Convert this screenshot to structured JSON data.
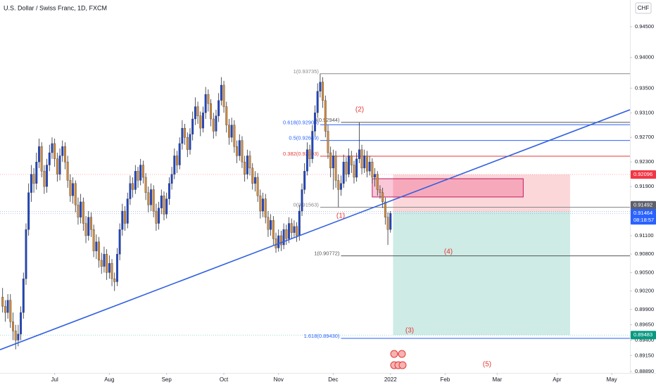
{
  "chart_data": {
    "type": "candlestick",
    "title": "U.S. Dollar / Swiss Franc, 1D, FXCM",
    "currency": "CHF",
    "up_color": "#1f45c4",
    "down_color": "#d08a3c",
    "x": [
      0,
      1,
      2,
      3,
      4,
      5,
      6,
      7,
      8,
      9,
      10,
      11,
      12,
      13,
      14,
      15,
      16,
      17,
      18,
      19,
      20,
      21,
      22,
      23,
      24,
      25,
      26,
      27,
      28,
      29,
      30,
      31,
      32,
      33,
      34,
      35,
      36,
      37,
      38,
      39,
      40,
      41,
      42,
      43,
      44,
      45,
      46,
      47,
      48,
      49,
      50,
      51,
      52,
      53,
      54,
      55,
      56,
      57,
      58,
      59,
      60,
      61,
      62,
      63,
      64,
      65,
      66,
      67,
      68,
      69,
      70,
      71,
      72,
      73,
      74,
      75,
      76,
      77,
      78,
      79,
      80,
      81,
      82,
      83,
      84,
      85,
      86,
      87,
      88,
      89,
      90,
      91,
      92,
      93,
      94,
      95,
      96,
      97,
      98,
      99,
      100,
      101,
      102,
      103,
      104,
      105,
      106,
      107,
      108,
      109,
      110,
      111,
      112,
      113,
      114,
      115,
      116,
      117,
      118,
      119,
      120,
      121,
      122,
      123,
      124,
      125,
      126,
      127,
      128,
      129,
      130,
      131,
      132,
      133,
      134,
      135,
      136,
      137,
      138,
      139,
      140,
      141,
      142,
      143,
      144,
      145,
      146,
      147,
      148,
      149
    ],
    "open": [
      0.901,
      0.8995,
      0.8985,
      0.9005,
      0.897,
      0.8955,
      0.894,
      0.895,
      0.8985,
      0.904,
      0.912,
      0.918,
      0.921,
      0.9195,
      0.923,
      0.9255,
      0.9215,
      0.919,
      0.9225,
      0.9245,
      0.926,
      0.9235,
      0.921,
      0.924,
      0.9255,
      0.923,
      0.92,
      0.9175,
      0.9195,
      0.916,
      0.914,
      0.9165,
      0.913,
      0.911,
      0.914,
      0.912,
      0.9085,
      0.91,
      0.907,
      0.906,
      0.908,
      0.905,
      0.9065,
      0.904,
      0.9035,
      0.908,
      0.912,
      0.915,
      0.913,
      0.917,
      0.9195,
      0.9185,
      0.9215,
      0.92,
      0.9225,
      0.9205,
      0.918,
      0.916,
      0.9185,
      0.915,
      0.913,
      0.9155,
      0.9175,
      0.9145,
      0.917,
      0.9195,
      0.921,
      0.924,
      0.9225,
      0.926,
      0.9285,
      0.927,
      0.925,
      0.9275,
      0.93,
      0.932,
      0.9305,
      0.9285,
      0.931,
      0.934,
      0.9325,
      0.93,
      0.928,
      0.9305,
      0.933,
      0.9355,
      0.932,
      0.929,
      0.927,
      0.929,
      0.9255,
      0.924,
      0.9265,
      0.923,
      0.921,
      0.924,
      0.922,
      0.9195,
      0.9205,
      0.9175,
      0.915,
      0.917,
      0.914,
      0.912,
      0.9135,
      0.9105,
      0.909,
      0.911,
      0.9095,
      0.912,
      0.9105,
      0.913,
      0.9115,
      0.9125,
      0.911,
      0.915,
      0.9185,
      0.9215,
      0.925,
      0.9235,
      0.928,
      0.931,
      0.9345,
      0.936,
      0.933,
      0.928,
      0.9245,
      0.922,
      0.924,
      0.92,
      0.9185,
      0.9195,
      0.923,
      0.921,
      0.924,
      0.9225,
      0.9205,
      0.9235,
      0.925,
      0.922,
      0.924,
      0.9215,
      0.923,
      0.9205,
      0.921,
      0.9185,
      0.918,
      0.9165,
      0.914,
      0.912
    ],
    "high": [
      0.9025,
      0.9005,
      0.9015,
      0.9015,
      0.8985,
      0.8965,
      0.8965,
      0.8995,
      0.905,
      0.913,
      0.9195,
      0.9225,
      0.922,
      0.9245,
      0.9268,
      0.9262,
      0.9225,
      0.9235,
      0.9258,
      0.927,
      0.9268,
      0.9245,
      0.9252,
      0.9265,
      0.9262,
      0.924,
      0.921,
      0.9205,
      0.92,
      0.9172,
      0.9178,
      0.9172,
      0.9142,
      0.915,
      0.9148,
      0.9128,
      0.9112,
      0.9108,
      0.9082,
      0.9092,
      0.9088,
      0.9078,
      0.9072,
      0.905,
      0.909,
      0.913,
      0.9162,
      0.9158,
      0.918,
      0.9208,
      0.9205,
      0.9225,
      0.9222,
      0.9235,
      0.9232,
      0.9212,
      0.919,
      0.9195,
      0.9192,
      0.9162,
      0.9165,
      0.9185,
      0.9182,
      0.918,
      0.9205,
      0.9222,
      0.9252,
      0.9248,
      0.927,
      0.9298,
      0.9292,
      0.9278,
      0.9285,
      0.9312,
      0.9335,
      0.9328,
      0.9312,
      0.932,
      0.9352,
      0.9348,
      0.9332,
      0.931,
      0.9315,
      0.9342,
      0.9368,
      0.9362,
      0.9328,
      0.93,
      0.9302,
      0.9298,
      0.9265,
      0.9275,
      0.9272,
      0.924,
      0.925,
      0.9248,
      0.9228,
      0.9215,
      0.9212,
      0.9185,
      0.918,
      0.9178,
      0.915,
      0.9145,
      0.9142,
      0.9115,
      0.912,
      0.9118,
      0.913,
      0.9128,
      0.914,
      0.9138,
      0.9135,
      0.9132,
      0.916,
      0.9195,
      0.9228,
      0.9262,
      0.9258,
      0.929,
      0.9322,
      0.9358,
      0.93735,
      0.9368,
      0.9338,
      0.929,
      0.9255,
      0.925,
      0.9248,
      0.921,
      0.9208,
      0.9242,
      0.9238,
      0.9252,
      0.9248,
      0.9232,
      0.9245,
      0.92944,
      0.9258,
      0.925,
      0.9248,
      0.924,
      0.9236,
      0.922,
      0.9215,
      0.9192,
      0.9188,
      0.9172,
      0.9148,
      0.915
    ],
    "low": [
      0.8985,
      0.897,
      0.8975,
      0.896,
      0.894,
      0.8925,
      0.893,
      0.894,
      0.8975,
      0.903,
      0.911,
      0.9165,
      0.918,
      0.9185,
      0.922,
      0.9205,
      0.9178,
      0.918,
      0.9215,
      0.9235,
      0.9222,
      0.9198,
      0.92,
      0.923,
      0.9218,
      0.9188,
      0.9165,
      0.9162,
      0.9148,
      0.9128,
      0.913,
      0.9118,
      0.9098,
      0.9102,
      0.9108,
      0.9075,
      0.9072,
      0.9058,
      0.9048,
      0.905,
      0.9038,
      0.904,
      0.9028,
      0.902,
      0.9028,
      0.907,
      0.911,
      0.9118,
      0.9122,
      0.916,
      0.9172,
      0.9178,
      0.9188,
      0.9192,
      0.9195,
      0.9168,
      0.9148,
      0.915,
      0.914,
      0.9118,
      0.912,
      0.9145,
      0.9135,
      0.9138,
      0.916,
      0.9185,
      0.9202,
      0.9212,
      0.9218,
      0.925,
      0.9258,
      0.9238,
      0.9242,
      0.9265,
      0.929,
      0.9292,
      0.9272,
      0.9278,
      0.93,
      0.9312,
      0.9288,
      0.9268,
      0.9272,
      0.9295,
      0.9322,
      0.931,
      0.9278,
      0.9258,
      0.9262,
      0.9245,
      0.9228,
      0.9232,
      0.922,
      0.9198,
      0.9202,
      0.9208,
      0.9185,
      0.9182,
      0.9165,
      0.9138,
      0.914,
      0.913,
      0.9108,
      0.911,
      0.9095,
      0.9082,
      0.9084,
      0.9085,
      0.9088,
      0.9095,
      0.9098,
      0.9105,
      0.9108,
      0.91,
      0.9102,
      0.9142,
      0.9178,
      0.9208,
      0.9222,
      0.9228,
      0.9272,
      0.9302,
      0.9335,
      0.9318,
      0.927,
      0.9235,
      0.9205,
      0.9185,
      0.9188,
      0.91563,
      0.9175,
      0.9188,
      0.9198,
      0.9205,
      0.9212,
      0.9195,
      0.9198,
      0.9228,
      0.921,
      0.9212,
      0.9205,
      0.9208,
      0.9195,
      0.919,
      0.9175,
      0.917,
      0.9155,
      0.9128,
      0.9095,
      0.9115
    ],
    "close": [
      0.8995,
      0.8985,
      0.9005,
      0.897,
      0.8955,
      0.894,
      0.895,
      0.8985,
      0.904,
      0.912,
      0.918,
      0.921,
      0.9195,
      0.923,
      0.9255,
      0.9215,
      0.919,
      0.9225,
      0.9245,
      0.926,
      0.9235,
      0.921,
      0.924,
      0.9255,
      0.923,
      0.92,
      0.9175,
      0.9195,
      0.916,
      0.914,
      0.9165,
      0.913,
      0.911,
      0.914,
      0.912,
      0.9085,
      0.91,
      0.907,
      0.906,
      0.908,
      0.905,
      0.9065,
      0.904,
      0.9035,
      0.908,
      0.912,
      0.915,
      0.913,
      0.917,
      0.9195,
      0.9185,
      0.9215,
      0.92,
      0.9225,
      0.9205,
      0.918,
      0.916,
      0.9185,
      0.915,
      0.913,
      0.9155,
      0.9175,
      0.9145,
      0.917,
      0.9195,
      0.921,
      0.924,
      0.9225,
      0.926,
      0.9285,
      0.927,
      0.925,
      0.9275,
      0.93,
      0.932,
      0.9305,
      0.9285,
      0.931,
      0.934,
      0.9325,
      0.93,
      0.928,
      0.9305,
      0.933,
      0.9355,
      0.932,
      0.929,
      0.927,
      0.929,
      0.9255,
      0.924,
      0.9265,
      0.923,
      0.921,
      0.924,
      0.922,
      0.9195,
      0.9205,
      0.9175,
      0.915,
      0.917,
      0.914,
      0.912,
      0.9135,
      0.9105,
      0.909,
      0.911,
      0.9095,
      0.912,
      0.9105,
      0.913,
      0.9115,
      0.9125,
      0.911,
      0.915,
      0.9185,
      0.9215,
      0.925,
      0.9235,
      0.928,
      0.931,
      0.9345,
      0.936,
      0.933,
      0.928,
      0.9245,
      0.922,
      0.924,
      0.92,
      0.9185,
      0.9195,
      0.923,
      0.921,
      0.924,
      0.9225,
      0.9205,
      0.9235,
      0.925,
      0.922,
      0.924,
      0.9215,
      0.923,
      0.9205,
      0.921,
      0.9185,
      0.918,
      0.9165,
      0.914,
      0.912,
      0.91464
    ],
    "xlim": [
      -1,
      241
    ],
    "xticks": [
      {
        "value": 20,
        "label": "Jul"
      },
      {
        "value": 41,
        "label": "Aug"
      },
      {
        "value": 63,
        "label": "Sep"
      },
      {
        "value": 85,
        "label": "Oct"
      },
      {
        "value": 106,
        "label": "Nov"
      },
      {
        "value": 127,
        "label": "Dec"
      },
      {
        "value": 149,
        "label": "2022"
      },
      {
        "value": 170,
        "label": "Feb"
      },
      {
        "value": 190,
        "label": "Mar"
      },
      {
        "value": 213,
        "label": "Apr"
      },
      {
        "value": 234,
        "label": "May"
      }
    ],
    "ylim": [
      0.88867,
      0.94935
    ],
    "yticks": [
      {
        "value": 0.945,
        "label": "0.94500"
      },
      {
        "value": 0.94,
        "label": "0.94000"
      },
      {
        "value": 0.935,
        "label": "0.93500"
      },
      {
        "value": 0.931,
        "label": "0.93100"
      },
      {
        "value": 0.927,
        "label": "0.92700"
      },
      {
        "value": 0.923,
        "label": "0.92300"
      },
      {
        "value": 0.919,
        "label": "0.91900"
      },
      {
        "value": 0.911,
        "label": "0.91100"
      },
      {
        "value": 0.908,
        "label": "0.90800"
      },
      {
        "value": 0.905,
        "label": "0.90500"
      },
      {
        "value": 0.902,
        "label": "0.90200"
      },
      {
        "value": 0.899,
        "label": "0.89900"
      },
      {
        "value": 0.8965,
        "label": "0.89650"
      },
      {
        "value": 0.894,
        "label": "0.89400"
      },
      {
        "value": 0.8915,
        "label": "0.89150"
      },
      {
        "value": 0.8889,
        "label": "0.88890"
      }
    ],
    "grid": false,
    "trendline": {
      "color": "#2f5fe0",
      "x": [
        -1,
        241
      ],
      "y": [
        0.89245,
        0.93149
      ]
    },
    "fib_levels": [
      {
        "value": 0.93735,
        "label": "1(0.93735)",
        "color": "#888888",
        "x0": 122
      },
      {
        "value": 0.92905,
        "label": "0.618(0.92905)",
        "color": "#2962ff",
        "x0": 122
      },
      {
        "value": 0.92649,
        "label": "0.5(0.92649)",
        "color": "#2962ff",
        "x0": 122
      },
      {
        "value": 0.92393,
        "label": "0.382(0.92393)",
        "color": "#e53935",
        "x0": 122
      },
      {
        "value": 0.91563,
        "label": "0(0.91563)",
        "color": "#888888",
        "x0": 122
      },
      {
        "value": 0.92944,
        "label": "0(0.92944)",
        "color": "#555555",
        "x0": 130
      },
      {
        "value": 0.90772,
        "label": "1(0.90772)",
        "color": "#555555",
        "x0": 130
      },
      {
        "value": 0.8943,
        "label": "1.618(0.89430)",
        "color": "#2962ff",
        "x0": 130
      }
    ],
    "zone": {
      "x": [
        142,
        200
      ],
      "y": [
        0.9173,
        0.92027
      ]
    },
    "position": {
      "x": [
        150,
        218
      ],
      "entry": 0.91492,
      "stop": 0.92096,
      "target": 0.89483
    },
    "price_markers": [
      {
        "value": 0.92096,
        "color": "#f23645"
      },
      {
        "value": 0.91492,
        "color": "#5d606b"
      },
      {
        "value": 0.91464,
        "color": "#2962ff"
      },
      {
        "value": 0.89483,
        "color": "#089981"
      }
    ],
    "countdown": "08:18:57",
    "annotations": [
      "(1)",
      "(2)",
      "(3)",
      "(4)",
      "(5)"
    ]
  }
}
